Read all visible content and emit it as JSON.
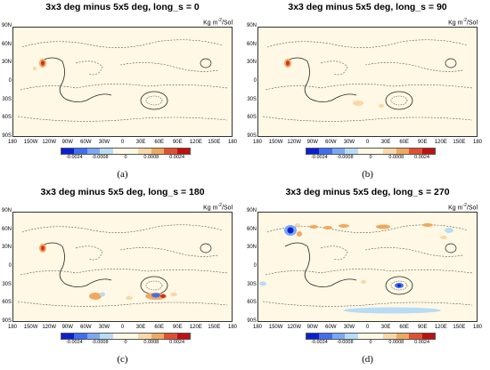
{
  "figure": {
    "unit_text": "Kg m",
    "unit_sup": "-2",
    "unit_suffix": "/Sol",
    "lat_labels": [
      "90N",
      "60N",
      "30N",
      "0",
      "30S",
      "60S",
      "90S"
    ],
    "lon_labels": [
      "180",
      "150W",
      "120W",
      "90W",
      "60W",
      "30W",
      "0",
      "30E",
      "60E",
      "90E",
      "120E",
      "150E",
      "180"
    ],
    "colorbar_labels": [
      "-0.0024",
      "-0.0008",
      "0",
      "0.0008",
      "0.0024"
    ],
    "colorbar_colors": [
      "#0a20d0",
      "#3e6ff0",
      "#7aa8f5",
      "#b8dcf5",
      "#fff8e4",
      "#fff8e4",
      "#f8d8a8",
      "#f0a860",
      "#e05030",
      "#c01010"
    ],
    "background_color": "#fff8e4"
  },
  "panels": [
    {
      "title": "3x3 deg minus 5x5 deg, long_s = 0",
      "label": "(a)",
      "long_s": 0
    },
    {
      "title": "3x3 deg minus 5x5 deg, long_s = 90",
      "label": "(b)",
      "long_s": 90
    },
    {
      "title": "3x3 deg minus 5x5 deg, long_s = 180",
      "label": "(c)",
      "long_s": 180
    },
    {
      "title": "3x3 deg minus 5x5 deg, long_s = 270",
      "label": "(d)",
      "long_s": 270
    }
  ]
}
